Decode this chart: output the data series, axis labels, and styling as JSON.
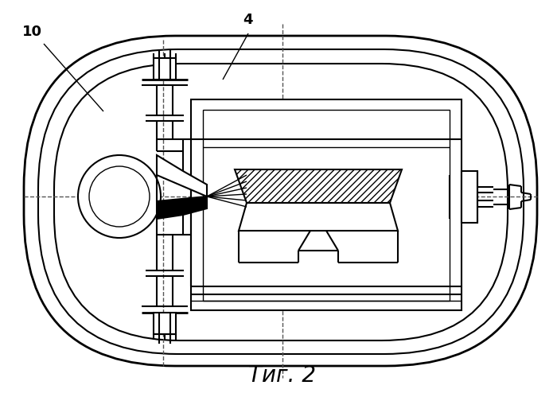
{
  "bg_color": "#ffffff",
  "line_color": "#000000",
  "fig_width": 7.0,
  "fig_height": 4.94,
  "title": "Τиг. 2",
  "label_10": "10",
  "label_4": "4"
}
